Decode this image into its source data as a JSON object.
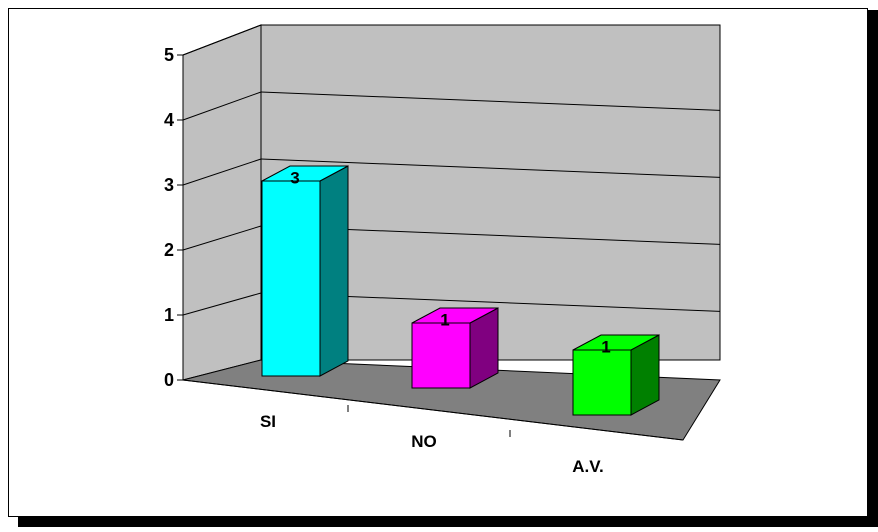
{
  "chart_data": {
    "type": "bar",
    "style": "3d-column",
    "categories": [
      "SI",
      "NO",
      "A.V."
    ],
    "values": [
      3,
      1,
      1
    ],
    "data_labels": [
      "3",
      "1",
      "1"
    ],
    "ylim": [
      0,
      5
    ],
    "yticks": [
      "0",
      "1",
      "2",
      "3",
      "4",
      "5"
    ],
    "grid": true,
    "legend": "none",
    "colors": {
      "bars": [
        "#00FFFF",
        "#FF00FF",
        "#00FF00"
      ],
      "bar_sides": [
        "#008080",
        "#800080",
        "#008000"
      ],
      "walls": "#C0C0C0",
      "floor": "#808080",
      "frame_shadow": "#000000"
    }
  }
}
